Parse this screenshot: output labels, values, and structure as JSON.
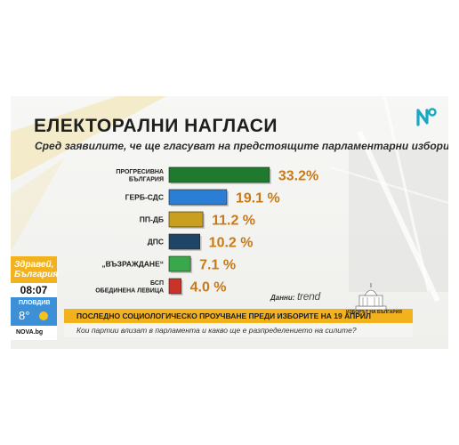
{
  "title": "ЕЛЕКТОРАЛНИ НАГЛАСИ",
  "subtitle": "Сред заявилите, че ще гласуват на предстоящите парламентарни избори",
  "source_label": "Данни:",
  "source_name": "trend",
  "logo_icon": "nova-logo-icon",
  "chart_data": {
    "type": "bar",
    "orientation": "horizontal",
    "title": "ЕЛЕКТОРАЛНИ НАГЛАСИ",
    "subtitle": "Сред заявилите, че ще гласуват на предстоящите парламентарни избори",
    "categories": [
      [
        "ПРОГРЕСИВНА",
        "БЪЛГАРИЯ"
      ],
      [
        "ГЕРБ-СДС"
      ],
      [
        "ПП-ДБ"
      ],
      [
        "ДПС"
      ],
      [
        "„ВЪЗРАЖДАНЕ“"
      ],
      [
        "БСП",
        "ОБЕДИНЕНА ЛЕВИЦА"
      ]
    ],
    "values": [
      33.2,
      19.1,
      11.2,
      10.2,
      7.1,
      4.0
    ],
    "value_labels": [
      "33.2%",
      "19.1 %",
      "11.2 %",
      "10.2 %",
      "7.1 %",
      "4.0 %"
    ],
    "colors": [
      "#1f7a2e",
      "#2a7fd4",
      "#c8a01e",
      "#1e4466",
      "#39a84a",
      "#c93328"
    ],
    "value_label_color": "#c97a18"
  },
  "widget": {
    "greeting": "Здравей, България",
    "time": "08:07",
    "city": "ПЛОВДИВ",
    "temperature": "8°",
    "site": "NOVA.bg"
  },
  "ticker": {
    "headline": "ПОСЛЕДНО СОЦИОЛОГИЧЕСКО ПРОУЧВАНЕ ПРЕДИ ИЗБОРИТЕ НА 19 АПРИЛ",
    "subline": "Кои партии влизат в парламента и какво ще е разпределението на силите?",
    "emblem_text": "ИЗБОРЪТ НА БЪЛГАРИЯ"
  }
}
